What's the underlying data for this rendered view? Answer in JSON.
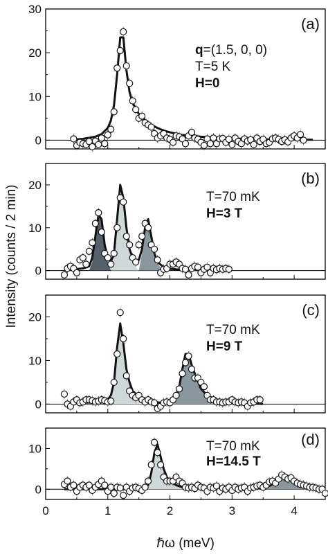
{
  "chart_data": [
    {
      "type": "scatter",
      "panel_label": "(a)",
      "annotations": [
        {
          "bold_prefix": "q",
          "text": "=(1.5, 0, 0)"
        },
        {
          "bold_prefix": "",
          "text": "T=5 K"
        },
        {
          "bold_prefix": "H=0",
          "text": ""
        }
      ],
      "xlim": [
        0,
        4.5
      ],
      "ylim": [
        -2,
        30
      ],
      "yticks": [
        0,
        10,
        20,
        30
      ],
      "series": [
        {
          "kind": "fit_line",
          "x": [
            0.4,
            0.6,
            0.8,
            0.9,
            1.0,
            1.05,
            1.1,
            1.15,
            1.2,
            1.25,
            1.3,
            1.35,
            1.4,
            1.5,
            1.6,
            1.7,
            1.8,
            1.9,
            2.0,
            2.2,
            2.5,
            3.0,
            3.5,
            4.0,
            4.3
          ],
          "y": [
            0.1,
            0.3,
            0.8,
            1.4,
            2.8,
            4.5,
            8,
            15,
            23.5,
            23.5,
            16,
            11,
            8.5,
            6,
            4.5,
            3.5,
            2.8,
            2.2,
            1.8,
            1.2,
            0.8,
            0.4,
            0.2,
            0.1,
            0.1
          ]
        },
        {
          "kind": "points",
          "x": [
            0.45,
            0.5,
            0.55,
            0.6,
            0.65,
            0.7,
            0.75,
            0.8,
            0.85,
            0.9,
            0.95,
            1.0,
            1.05,
            1.1,
            1.15,
            1.2,
            1.25,
            1.3,
            1.35,
            1.4,
            1.45,
            1.5,
            1.55,
            1.6,
            1.65,
            1.7,
            1.75,
            1.8,
            1.85,
            1.9,
            1.95,
            2.0,
            2.05,
            2.1,
            2.15,
            2.2,
            2.25,
            2.3,
            2.35,
            2.4,
            2.45,
            2.5,
            2.55,
            2.6,
            2.65,
            2.7,
            2.75,
            2.8,
            2.85,
            2.9,
            2.95,
            3.0,
            3.05,
            3.1,
            3.15,
            3.2,
            3.25,
            3.3,
            3.35,
            3.4,
            3.45,
            3.5,
            3.55,
            3.6,
            3.65,
            3.7,
            3.75,
            3.8,
            3.85,
            3.9,
            3.95,
            4.0,
            4.05,
            4.1,
            4.15
          ],
          "y": [
            0.3,
            -1.2,
            -0.5,
            -0.8,
            -1.0,
            -0.3,
            -1.5,
            -0.2,
            -1.0,
            0.5,
            -0.8,
            1.2,
            2.5,
            6.5,
            16.5,
            20.5,
            24.8,
            17,
            13,
            9,
            7,
            5,
            5.5,
            4,
            3.5,
            3,
            1.5,
            0.5,
            1,
            1.5,
            0.5,
            0.2,
            -0.5,
            1,
            0.8,
            0.3,
            -0.8,
            1,
            1.8,
            0.5,
            0.2,
            -0.5,
            -1.2,
            0.3,
            -0.8,
            0.5,
            -0.8,
            0.3,
            0.4,
            -0.5,
            0.2,
            -1.0,
            0.5,
            -0.3,
            -0.8,
            0.3,
            -0.2,
            0.1,
            -1.0,
            0.5,
            -0.3,
            0.2,
            -0.8,
            -0.5,
            0.3,
            0.5,
            0.2,
            -0.3,
            0.1,
            -0.4,
            0.5,
            1,
            0.5,
            1.3,
            0
          ]
        }
      ]
    },
    {
      "type": "scatter",
      "panel_label": "(b)",
      "annotations": [
        {
          "bold_prefix": "",
          "text": "T=70 mK"
        },
        {
          "bold_prefix": "H=3 T",
          "text": ""
        }
      ],
      "xlim": [
        0,
        4.5
      ],
      "ylim": [
        -2,
        25
      ],
      "yticks": [
        0,
        10,
        20
      ],
      "series": [
        {
          "kind": "filled_peak",
          "color": "#56606a",
          "x": [
            0.7,
            0.75,
            0.8,
            0.85,
            0.9,
            0.95,
            1.0,
            1.05
          ],
          "y": [
            0,
            2,
            8,
            13,
            12,
            6,
            2,
            0
          ]
        },
        {
          "kind": "filled_peak",
          "color": "#cfd7d9",
          "x": [
            1.05,
            1.1,
            1.15,
            1.2,
            1.25,
            1.3,
            1.35,
            1.4,
            1.45,
            1.5
          ],
          "y": [
            0,
            3,
            12,
            20,
            17,
            10,
            5,
            2,
            0.8,
            0
          ]
        },
        {
          "kind": "filled_peak",
          "color": "#8a989e",
          "x": [
            1.5,
            1.55,
            1.6,
            1.65,
            1.7,
            1.75,
            1.8,
            1.85,
            1.9
          ],
          "y": [
            0,
            4,
            10,
            12,
            8,
            4,
            1.8,
            0.6,
            0
          ]
        },
        {
          "kind": "fit_line",
          "x": [
            0.3,
            0.6,
            0.7,
            0.75,
            0.8,
            0.85,
            0.9,
            0.95,
            1.0,
            1.05,
            1.1,
            1.15,
            1.2,
            1.25,
            1.3,
            1.35,
            1.4,
            1.45,
            1.5,
            1.55,
            1.6,
            1.65,
            1.7,
            1.75,
            1.8,
            1.9,
            2.0,
            2.2,
            2.5,
            2.9
          ],
          "y": [
            0.1,
            0.5,
            1,
            3,
            8,
            13,
            12,
            6,
            3,
            2,
            4,
            12,
            20,
            17,
            10,
            5,
            3,
            2,
            2.5,
            5,
            10,
            12,
            8,
            4,
            2,
            0.8,
            0.4,
            0.2,
            0.1,
            0.05
          ]
        },
        {
          "kind": "points",
          "x": [
            0.3,
            0.35,
            0.4,
            0.45,
            0.5,
            0.55,
            0.6,
            0.65,
            0.7,
            0.75,
            0.8,
            0.85,
            0.9,
            0.95,
            1.0,
            1.05,
            1.1,
            1.15,
            1.2,
            1.25,
            1.3,
            1.35,
            1.4,
            1.45,
            1.5,
            1.55,
            1.6,
            1.65,
            1.7,
            1.75,
            1.8,
            1.85,
            1.9,
            1.95,
            2.0,
            2.05,
            2.1,
            2.15,
            2.2,
            2.25,
            2.3,
            2.35,
            2.4,
            2.45,
            2.5,
            2.55,
            2.6,
            2.65,
            2.7,
            2.75,
            2.8,
            2.85,
            2.9,
            2.95
          ],
          "y": [
            -1,
            0.5,
            1,
            0.5,
            -0.5,
            2.5,
            3,
            1.5,
            4.5,
            6.5,
            11,
            13.5,
            9,
            4,
            3,
            1.5,
            4,
            10,
            17,
            16,
            8,
            6,
            3,
            2,
            6,
            8,
            11,
            10,
            6,
            5,
            2.5,
            -0.5,
            0.3,
            0.5,
            1.5,
            1.5,
            2,
            1.5,
            0.5,
            0.3,
            -1,
            0.5,
            1,
            0.8,
            -0.5,
            0.3,
            0.8,
            -0.5,
            0.5,
            0.2,
            0.5,
            0.3,
            0.5,
            0.3
          ]
        }
      ]
    },
    {
      "type": "scatter",
      "panel_label": "(c)",
      "annotations": [
        {
          "bold_prefix": "",
          "text": "T=70 mK"
        },
        {
          "bold_prefix": "H=9 T",
          "text": ""
        }
      ],
      "xlim": [
        0,
        4.5
      ],
      "ylim": [
        -2,
        25
      ],
      "yticks": [
        0,
        10,
        20
      ],
      "series": [
        {
          "kind": "filled_peak",
          "color": "#cfd7d9",
          "x": [
            1.0,
            1.05,
            1.1,
            1.15,
            1.2,
            1.25,
            1.3,
            1.35,
            1.4,
            1.5,
            1.6,
            1.7,
            1.8,
            1.9
          ],
          "y": [
            0,
            1,
            5,
            13,
            18.5,
            14,
            8,
            5,
            3,
            1.8,
            1.2,
            0.8,
            0.4,
            0
          ]
        },
        {
          "kind": "filled_peak",
          "color": "#8a989e",
          "x": [
            2.0,
            2.1,
            2.15,
            2.2,
            2.25,
            2.3,
            2.35,
            2.4,
            2.45,
            2.5,
            2.6,
            2.7,
            2.8,
            2.9
          ],
          "y": [
            0,
            1.5,
            4,
            8,
            11.5,
            11.5,
            9,
            7,
            5,
            3.5,
            2,
            1,
            0.5,
            0
          ]
        },
        {
          "kind": "fit_line",
          "x": [
            0.3,
            0.6,
            0.9,
            1.0,
            1.05,
            1.1,
            1.15,
            1.2,
            1.25,
            1.3,
            1.35,
            1.4,
            1.5,
            1.6,
            1.7,
            1.8,
            1.9,
            2.0,
            2.1,
            2.15,
            2.2,
            2.25,
            2.3,
            2.35,
            2.4,
            2.5,
            2.6,
            2.8,
            3.0,
            3.5
          ],
          "y": [
            0.1,
            0.3,
            0.5,
            1,
            2,
            5,
            13,
            18.5,
            14,
            8,
            5,
            3,
            1.8,
            1.2,
            0.8,
            0.4,
            0.3,
            0.5,
            1.5,
            4,
            8,
            11.5,
            11.5,
            9,
            7,
            3.5,
            2,
            0.5,
            0.2,
            0.05
          ]
        },
        {
          "kind": "points",
          "x": [
            0.3,
            0.35,
            0.4,
            0.45,
            0.5,
            0.55,
            0.6,
            0.65,
            0.7,
            0.75,
            0.8,
            0.85,
            0.9,
            0.95,
            1.0,
            1.05,
            1.1,
            1.15,
            1.2,
            1.25,
            1.3,
            1.35,
            1.4,
            1.45,
            1.5,
            1.55,
            1.6,
            1.65,
            1.7,
            1.75,
            1.8,
            1.85,
            1.9,
            1.95,
            2.0,
            2.05,
            2.1,
            2.15,
            2.2,
            2.25,
            2.3,
            2.35,
            2.4,
            2.45,
            2.5,
            2.55,
            2.6,
            2.65,
            2.7,
            2.75,
            2.8,
            2.85,
            2.9,
            2.95,
            3.0,
            3.05,
            3.1,
            3.15,
            3.2,
            3.25,
            3.3,
            3.35,
            3.4,
            3.45
          ],
          "y": [
            2.3,
            0,
            -0.5,
            0.5,
            1,
            0.3,
            0.5,
            1,
            1,
            0.8,
            0.5,
            0.7,
            1,
            0.8,
            0.5,
            0.7,
            5,
            11.5,
            21,
            15,
            6.5,
            3,
            2,
            1.5,
            2,
            1,
            0.5,
            1,
            0.5,
            0.3,
            -1,
            -0.5,
            0.3,
            0.5,
            0.3,
            1,
            2,
            3.5,
            7,
            9.5,
            11,
            8,
            6,
            6,
            5,
            4,
            2,
            1,
            1,
            0.5,
            0.5,
            0.3,
            0.5,
            0.5,
            1,
            0.5,
            0.3,
            0.5,
            0.3,
            -0.5,
            0.3,
            0.5,
            1,
            1
          ]
        }
      ]
    },
    {
      "type": "scatter",
      "panel_label": "(d)",
      "annotations": [
        {
          "bold_prefix": "",
          "text": "T=70 mK"
        },
        {
          "bold_prefix": "H=14.5 T",
          "text": ""
        }
      ],
      "xlim": [
        0,
        4.5
      ],
      "ylim": [
        -2.5,
        15
      ],
      "yticks": [
        0,
        10
      ],
      "xticks": [
        0,
        1,
        2,
        3,
        4
      ],
      "xlabel": "ℏω (meV)",
      "series": [
        {
          "kind": "filled_peak",
          "color": "#cfd7d9",
          "x": [
            1.6,
            1.65,
            1.7,
            1.75,
            1.8,
            1.85,
            1.9,
            1.95,
            2.0,
            2.1,
            2.2,
            2.3
          ],
          "y": [
            0,
            1,
            4,
            9,
            11,
            8,
            5,
            3,
            2,
            1,
            0.5,
            0
          ]
        },
        {
          "kind": "filled_peak",
          "color": "#8a989e",
          "x": [
            3.4,
            3.5,
            3.6,
            3.7,
            3.8,
            3.85,
            3.9,
            4.0,
            4.1,
            4.2,
            4.3
          ],
          "y": [
            0,
            0.3,
            0.8,
            1.8,
            2.8,
            3,
            2.8,
            2,
            1.2,
            0.5,
            0
          ]
        },
        {
          "kind": "fit_line",
          "x": [
            0.3,
            0.8,
            1.2,
            1.5,
            1.6,
            1.65,
            1.7,
            1.75,
            1.8,
            1.85,
            1.9,
            1.95,
            2.0,
            2.1,
            2.2,
            2.4,
            2.8,
            3.2,
            3.5,
            3.6,
            3.7,
            3.8,
            3.85,
            3.9,
            4.0,
            4.1,
            4.2,
            4.4
          ],
          "y": [
            0,
            0,
            0,
            0.1,
            0.2,
            1,
            4,
            9,
            11,
            8,
            5,
            3,
            2,
            1,
            0.5,
            0.2,
            0,
            0.1,
            0.3,
            0.8,
            1.8,
            2.8,
            3,
            2.8,
            2,
            1.2,
            0.5,
            0.1
          ]
        },
        {
          "kind": "points",
          "x": [
            0.3,
            0.35,
            0.4,
            0.45,
            0.5,
            0.55,
            0.6,
            0.65,
            0.7,
            0.75,
            0.8,
            0.85,
            0.9,
            0.95,
            1.0,
            1.05,
            1.1,
            1.15,
            1.2,
            1.25,
            1.3,
            1.35,
            1.4,
            1.45,
            1.5,
            1.55,
            1.6,
            1.65,
            1.7,
            1.75,
            1.8,
            1.85,
            1.9,
            1.95,
            2.0,
            2.05,
            2.1,
            2.15,
            2.2,
            2.25,
            2.3,
            2.35,
            2.4,
            2.45,
            2.5,
            2.55,
            2.6,
            2.65,
            2.7,
            2.75,
            2.8,
            2.85,
            2.9,
            2.95,
            3.0,
            3.05,
            3.1,
            3.15,
            3.2,
            3.25,
            3.3,
            3.35,
            3.4,
            3.45,
            3.5,
            3.55,
            3.6,
            3.65,
            3.7,
            3.75,
            3.8,
            3.85,
            3.9,
            3.95,
            4.0,
            4.05,
            4.1,
            4.15,
            4.2,
            4.25,
            4.3,
            4.35,
            4.4,
            4.45,
            4.5
          ],
          "y": [
            1.2,
            2,
            0.5,
            1,
            -0.5,
            0.5,
            1,
            0.5,
            1,
            -0.3,
            0.5,
            1.2,
            2,
            1,
            -0.5,
            0.5,
            -1,
            0.5,
            0.3,
            -1.5,
            0.5,
            -0.5,
            0.3,
            0.5,
            0.2,
            -0.3,
            0.5,
            2,
            6,
            11.5,
            9,
            6,
            3,
            2,
            2,
            2,
            3,
            2,
            1.5,
            0.5,
            0.3,
            0.5,
            0.2,
            1,
            0.5,
            0.3,
            -0.5,
            0.5,
            0.3,
            0.8,
            -0.5,
            0.3,
            0,
            0.5,
            -0.3,
            0.5,
            0,
            0.3,
            0.5,
            -0.5,
            0.3,
            0.5,
            0.8,
            1,
            0.5,
            1,
            1.8,
            2,
            1.5,
            2.5,
            3.5,
            3,
            2.5,
            2.8,
            2,
            1.5,
            1.2,
            1,
            0.8,
            0.5,
            0.5,
            0.3,
            0,
            0,
            -1
          ]
        }
      ]
    }
  ],
  "shared_ylabel": "Intensity (counts / 2 min)"
}
